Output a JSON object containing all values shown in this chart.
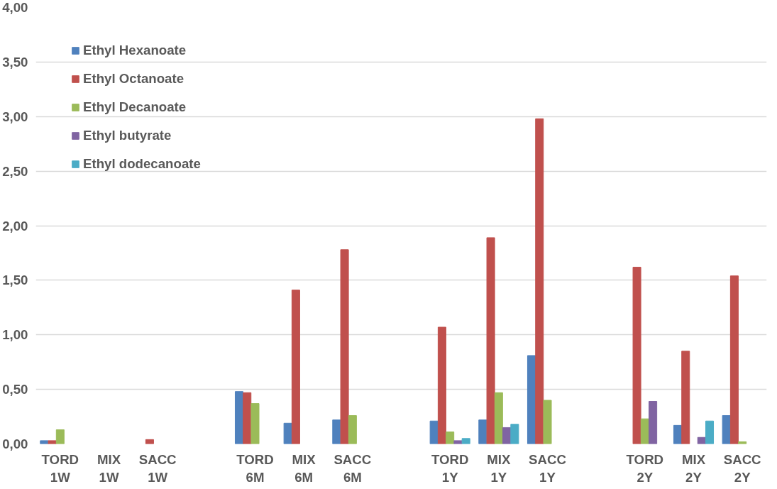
{
  "chart_data": {
    "type": "bar",
    "categories": [
      "TORD\n1W",
      "MIX\n1W",
      "SACC\n1W",
      null,
      "TORD\n6M",
      "MIX\n6M",
      "SACC\n6M",
      null,
      "TORD\n1Y",
      "MIX\n1Y",
      "SACC\n1Y",
      null,
      "TORD\n2Y",
      "MIX\n2Y",
      "SACC\n2Y"
    ],
    "series": [
      {
        "name": "Ethyl Hexanoate",
        "color": "#4f81bd",
        "values": [
          0.03,
          null,
          null,
          null,
          0.48,
          0.19,
          0.22,
          null,
          0.21,
          0.22,
          0.81,
          null,
          null,
          0.17,
          0.26
        ]
      },
      {
        "name": "Ethyl Octanoate",
        "color": "#c0504d",
        "values": [
          0.03,
          null,
          0.04,
          null,
          0.47,
          1.41,
          1.78,
          null,
          1.07,
          1.89,
          2.98,
          null,
          1.62,
          0.85,
          1.54
        ]
      },
      {
        "name": "Ethyl Decanoate",
        "color": "#9bbb59",
        "values": [
          0.13,
          null,
          null,
          null,
          0.37,
          null,
          0.26,
          null,
          0.11,
          0.47,
          0.4,
          null,
          0.23,
          null,
          0.02
        ]
      },
      {
        "name": "Ethyl butyrate",
        "color": "#8064a2",
        "values": [
          null,
          null,
          null,
          null,
          null,
          null,
          null,
          null,
          0.03,
          0.15,
          null,
          null,
          0.39,
          0.06,
          null
        ]
      },
      {
        "name": "Ethyl dodecanoate",
        "color": "#4bacc6",
        "values": [
          null,
          null,
          null,
          null,
          null,
          null,
          null,
          null,
          0.05,
          0.18,
          null,
          null,
          null,
          0.21,
          null
        ]
      }
    ],
    "ylim": [
      0,
      4
    ],
    "yticks": [
      {
        "value": 0,
        "label": "0,00"
      },
      {
        "value": 0.5,
        "label": "0,50"
      },
      {
        "value": 1,
        "label": "1,00"
      },
      {
        "value": 1.5,
        "label": "1,50"
      },
      {
        "value": 2,
        "label": "2,00"
      },
      {
        "value": 2.5,
        "label": "2,50"
      },
      {
        "value": 3,
        "label": "3,00"
      },
      {
        "value": 3.5,
        "label": "3,50"
      },
      {
        "value": 4,
        "label": "4,00"
      }
    ],
    "grid": "y",
    "legend": "top left"
  }
}
